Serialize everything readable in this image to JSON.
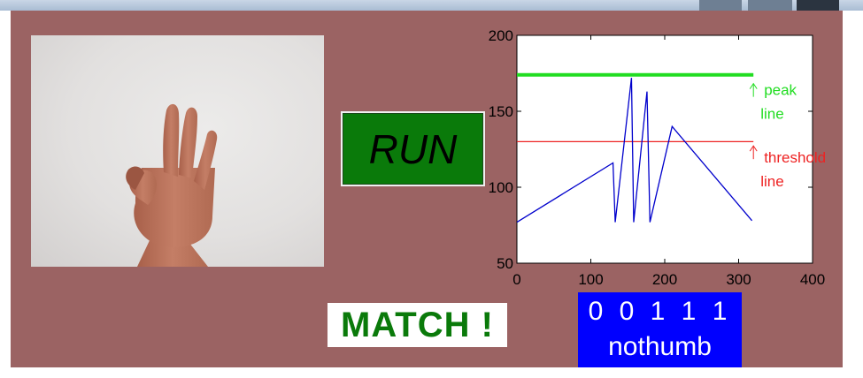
{
  "run_button": {
    "label": "RUN"
  },
  "result": {
    "message": "MATCH !"
  },
  "code": {
    "digits": "0 0 1 1 1",
    "label": "nothumb"
  },
  "colors": {
    "figure_background": "#9b6363",
    "run_button": "#0a7a0a",
    "match_text": "#0a7a0a",
    "code_box": "#0000ff",
    "signal": "#0000cc",
    "peak": "#22dd22",
    "threshold": "#ee2222"
  },
  "chart_data": {
    "type": "line",
    "title": "",
    "xlabel": "",
    "ylabel": "",
    "xlim": [
      0,
      400
    ],
    "ylim": [
      50,
      200
    ],
    "xticks": [
      0,
      100,
      200,
      300,
      400
    ],
    "yticks": [
      50,
      100,
      150,
      200
    ],
    "grid": false,
    "series": [
      {
        "color": "#0000cc",
        "x": [
          0,
          130,
          133,
          155,
          158,
          176,
          180,
          210,
          318
        ],
        "y": [
          77,
          116,
          77,
          172,
          77,
          163,
          77,
          140,
          78
        ]
      }
    ],
    "reference_lines": [
      {
        "value": 174,
        "color": "#22dd22",
        "x_range": [
          0,
          320
        ]
      },
      {
        "value": 130,
        "color": "#ee2222",
        "x_range": [
          0,
          320
        ]
      }
    ],
    "annotations": [
      {
        "label_lines": [
          "peak",
          "line"
        ],
        "color": "#22dd22",
        "x": 320,
        "y": 163
      },
      {
        "label_lines": [
          "threshold",
          "line"
        ],
        "color": "#ee2222",
        "x": 320,
        "y": 122
      }
    ]
  }
}
